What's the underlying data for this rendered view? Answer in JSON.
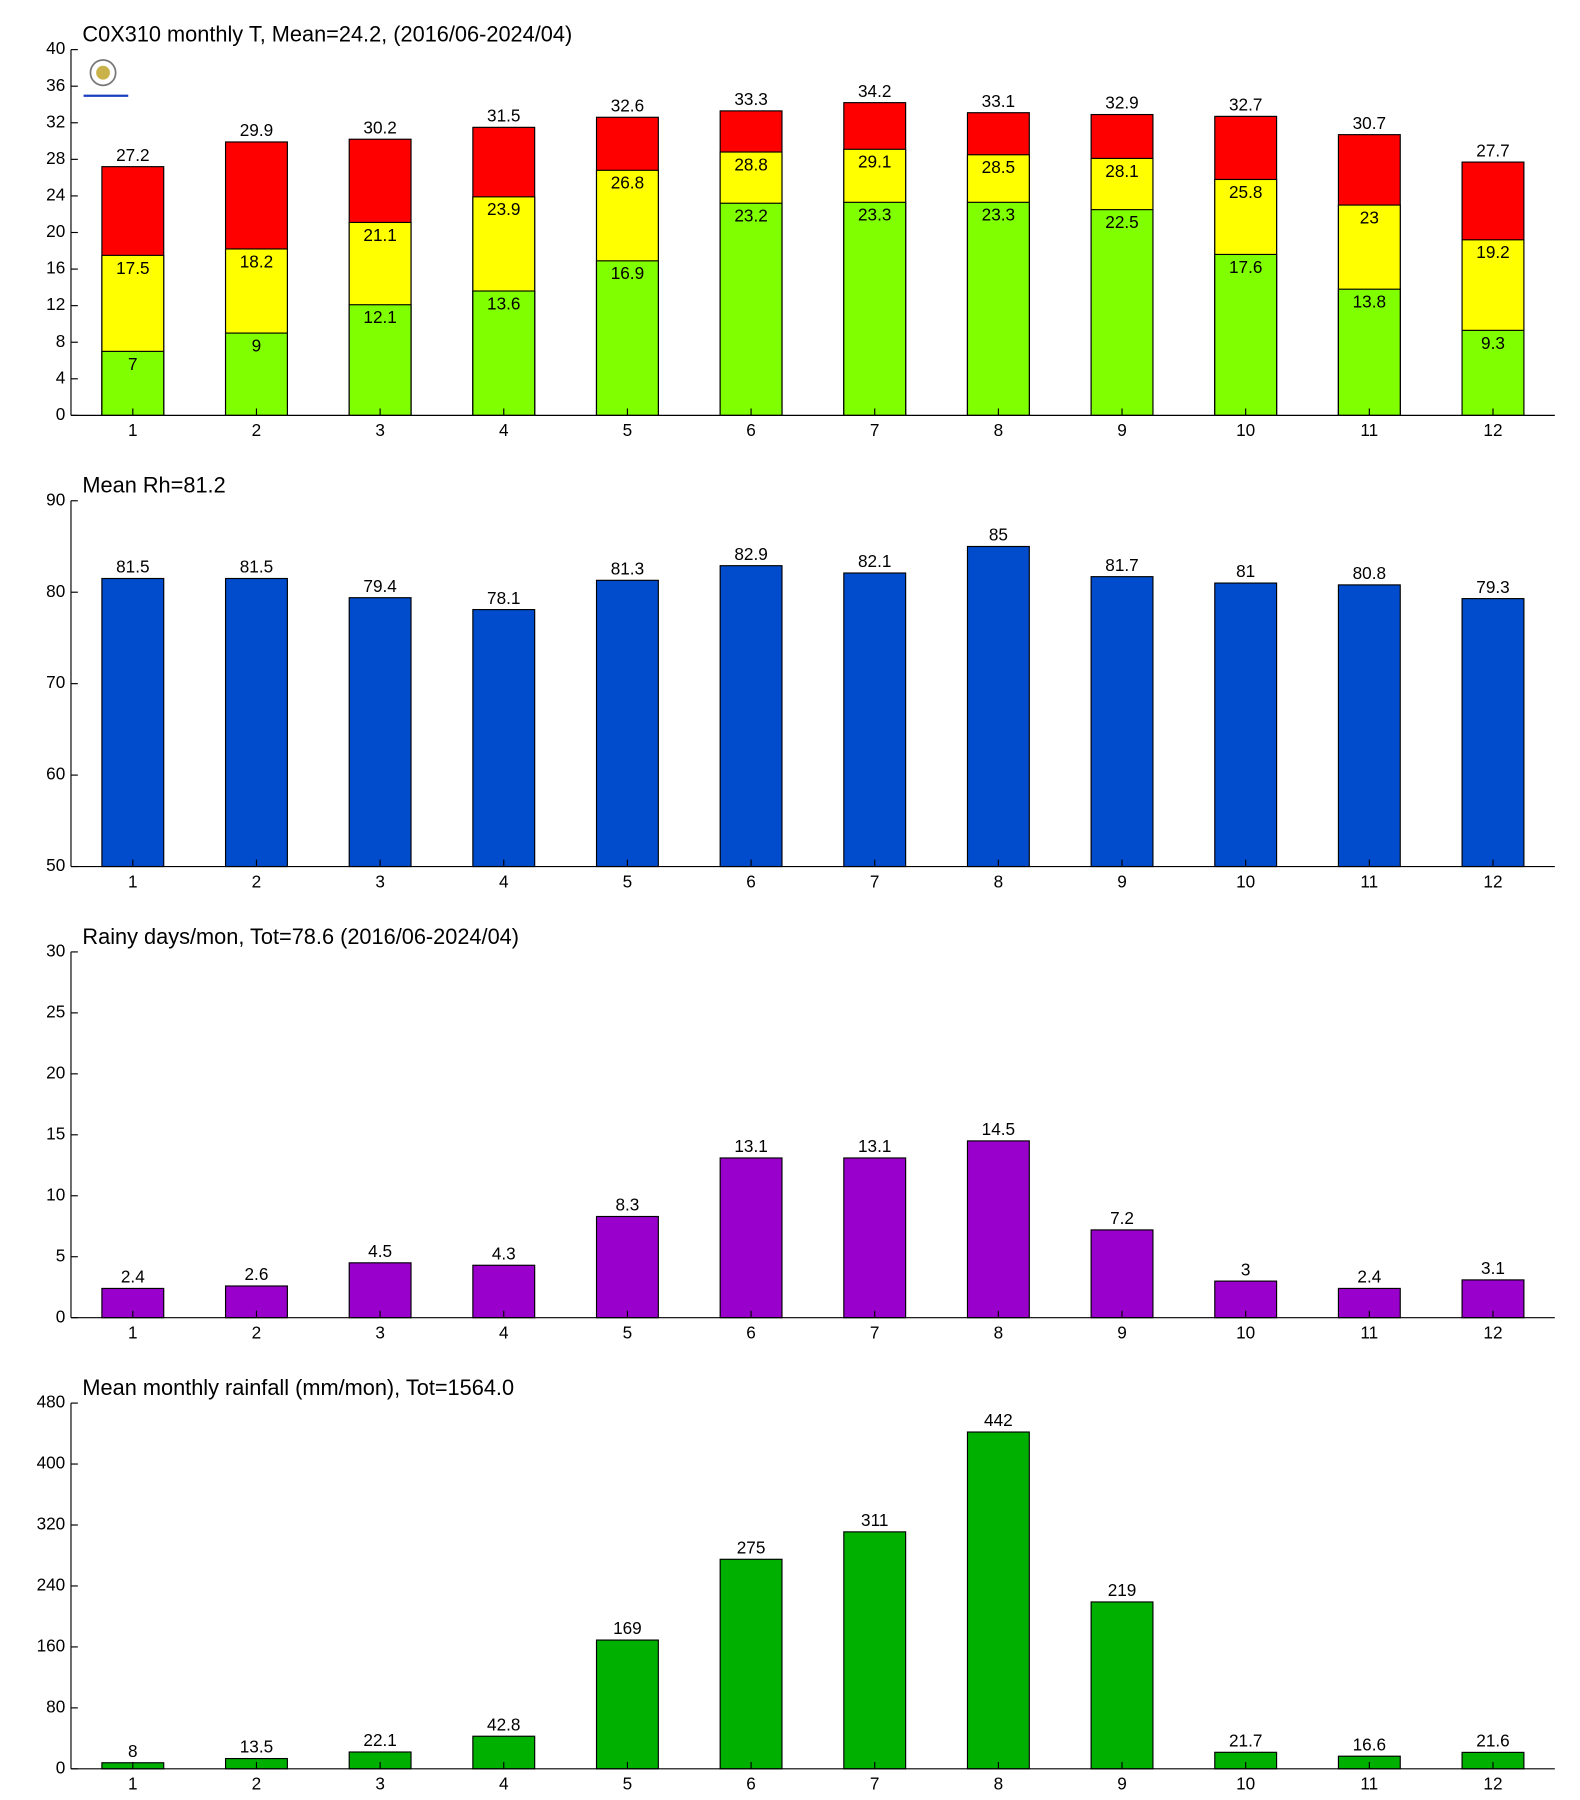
{
  "chart_data": [
    {
      "type": "bar",
      "title": "C0X310 monthly T, Mean=24.2, (2016/06-2024/04)",
      "categories": [
        "1",
        "2",
        "3",
        "4",
        "5",
        "6",
        "7",
        "8",
        "9",
        "10",
        "11",
        "12"
      ],
      "series": [
        {
          "color": "#ff0000",
          "values": [
            27.2,
            29.9,
            30.2,
            31.5,
            32.6,
            33.3,
            34.2,
            33.1,
            32.9,
            32.7,
            30.7,
            27.7
          ]
        },
        {
          "color": "#ffff00",
          "values": [
            17.5,
            18.2,
            21.1,
            23.9,
            26.8,
            28.8,
            29.1,
            28.5,
            28.1,
            25.8,
            23,
            19.2
          ]
        },
        {
          "color": "#80ff00",
          "values": [
            7,
            9,
            12.1,
            13.6,
            16.9,
            23.2,
            23.3,
            23.3,
            22.5,
            17.6,
            13.8,
            9.3
          ]
        }
      ],
      "ylim": [
        0,
        40
      ],
      "yticks": [
        0,
        4,
        8,
        12,
        16,
        20,
        24,
        28,
        32,
        36,
        40
      ]
    },
    {
      "type": "bar",
      "title": "Mean Rh=81.2",
      "categories": [
        "1",
        "2",
        "3",
        "4",
        "5",
        "6",
        "7",
        "8",
        "9",
        "10",
        "11",
        "12"
      ],
      "series": [
        {
          "color": "#004ccc",
          "values": [
            81.5,
            81.5,
            79.4,
            78.1,
            81.3,
            82.9,
            82.1,
            85,
            81.7,
            81,
            80.8,
            79.3
          ]
        }
      ],
      "ylim": [
        50,
        90
      ],
      "yticks": [
        50,
        60,
        70,
        80,
        90
      ]
    },
    {
      "type": "bar",
      "title": "Rainy days/mon, Tot=78.6 (2016/06-2024/04)",
      "categories": [
        "1",
        "2",
        "3",
        "4",
        "5",
        "6",
        "7",
        "8",
        "9",
        "10",
        "11",
        "12"
      ],
      "series": [
        {
          "color": "#9900cc",
          "values": [
            2.4,
            2.6,
            4.5,
            4.3,
            8.3,
            13.1,
            13.1,
            14.5,
            7.2,
            3,
            2.4,
            3.1
          ]
        }
      ],
      "ylim": [
        0,
        30
      ],
      "yticks": [
        0,
        5,
        10,
        15,
        20,
        25,
        30
      ]
    },
    {
      "type": "bar",
      "title": "Mean monthly rainfall (mm/mon), Tot=1564.0",
      "categories": [
        "1",
        "2",
        "3",
        "4",
        "5",
        "6",
        "7",
        "8",
        "9",
        "10",
        "11",
        "12"
      ],
      "series": [
        {
          "color": "#00b000",
          "values": [
            8,
            13.5,
            22.1,
            42.8,
            169,
            275,
            311,
            442,
            219,
            21.7,
            16.6,
            21.6
          ]
        }
      ],
      "ylim": [
        0,
        480
      ],
      "yticks": [
        0,
        80,
        160,
        240,
        320,
        400,
        480
      ]
    }
  ]
}
